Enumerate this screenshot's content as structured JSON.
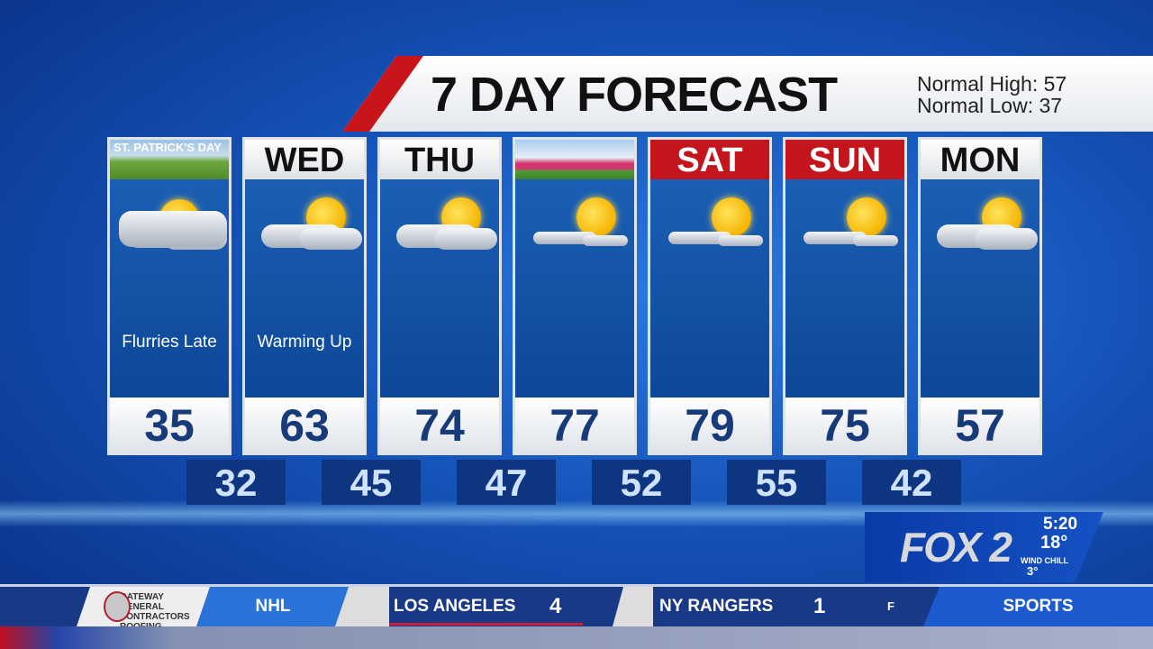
{
  "header": {
    "title": "7 DAY FORECAST",
    "normal_high": "Normal High: 57",
    "normal_low": "Normal Low: 37"
  },
  "days": [
    {
      "label": "ST. PATRICK'S DAY",
      "header_style": "image",
      "high": "35",
      "condition": "Flurries Late",
      "icon": "partly-cloudy-flurries-icon"
    },
    {
      "label": "WED",
      "header_style": "white",
      "high": "63",
      "condition": "Warming Up",
      "icon": "partly-cloudy-icon"
    },
    {
      "label": "THU",
      "header_style": "white",
      "high": "74",
      "condition": "",
      "icon": "partly-cloudy-icon"
    },
    {
      "label": "",
      "header_style": "image-tulips",
      "high": "77",
      "condition": "",
      "icon": "mostly-sunny-icon"
    },
    {
      "label": "SAT",
      "header_style": "red",
      "high": "79",
      "condition": "",
      "icon": "mostly-sunny-icon"
    },
    {
      "label": "SUN",
      "header_style": "red",
      "high": "75",
      "condition": "",
      "icon": "mostly-sunny-icon"
    },
    {
      "label": "MON",
      "header_style": "white",
      "high": "57",
      "condition": "",
      "icon": "partly-cloudy-icon"
    }
  ],
  "lows": [
    "32",
    "45",
    "47",
    "52",
    "55",
    "42"
  ],
  "bug": {
    "logo": "FOX 2",
    "time": "5:20",
    "temp": "18°",
    "wind_chill_label": "WIND CHILL",
    "wind_chill": "3°"
  },
  "ticker": {
    "sponsor": "GATEWAY GENERAL CONTRACTORS ROOFING",
    "league": "NHL",
    "team1": "LOS ANGELES",
    "score1": "4",
    "team2": "NY RANGERS",
    "score2": "1",
    "status": "F",
    "section": "SPORTS"
  },
  "colors": {
    "red": "#c4141c",
    "panel_blue": "#1a5fb5",
    "high_text": "#173a7a",
    "low_box": "#0d3580"
  }
}
